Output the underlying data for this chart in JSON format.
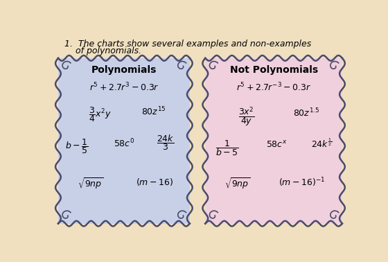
{
  "title_line1": "1.  The charts show several examples and non-examples",
  "title_line2": "    of polynomials.",
  "poly_title": "Polynomials",
  "not_poly_title": "Not Polynomials",
  "poly_bg": "#c8d0e8",
  "not_poly_bg": "#f0d0dc",
  "border_color": "#4a4a6a",
  "page_bg": "#f0e0c0",
  "title_fontsize": 9,
  "content_fontsize": 9,
  "header_fontsize": 10
}
